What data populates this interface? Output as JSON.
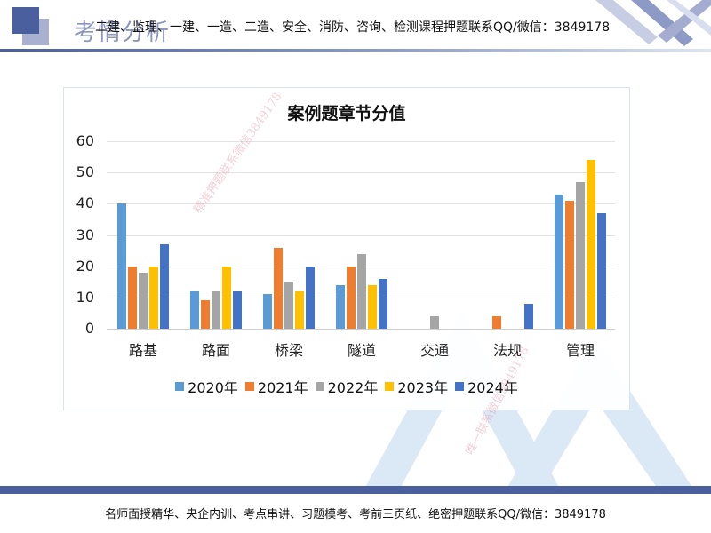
{
  "header": {
    "title": "考情分析",
    "banner": "二建、监理、一建、一造、二造、安全、消防、咨询、检测课程押题联系QQ/微信：3849178"
  },
  "watermarks": {
    "upper": "精准押题联系微信3849178",
    "lower": "唯一联系微信3849178"
  },
  "footer": {
    "text": "名师面授精华、央企内训、考点串讲、习题模考、考前三页纸、绝密押题联系QQ/微信：3849178"
  },
  "chart_data": {
    "type": "bar",
    "title": "案例题章节分值",
    "xlabel": "",
    "ylabel": "",
    "ylim": [
      0,
      60
    ],
    "yticks": [
      0,
      10,
      20,
      30,
      40,
      50,
      60
    ],
    "grid": true,
    "legend_position": "bottom",
    "categories": [
      "路基",
      "路面",
      "桥梁",
      "隧道",
      "交通",
      "法规",
      "管理"
    ],
    "series": [
      {
        "name": "2020年",
        "color": "#5b9bd5",
        "values": [
          40,
          12,
          11,
          14,
          0,
          0,
          43
        ]
      },
      {
        "name": "2021年",
        "color": "#ed7d31",
        "values": [
          20,
          9,
          26,
          20,
          0,
          4,
          41
        ]
      },
      {
        "name": "2022年",
        "color": "#a5a5a5",
        "values": [
          18,
          12,
          15,
          24,
          4,
          0,
          47
        ]
      },
      {
        "name": "2023年",
        "color": "#ffc000",
        "values": [
          20,
          20,
          12,
          14,
          0,
          0,
          54
        ]
      },
      {
        "name": "2024年",
        "color": "#4472c4",
        "values": [
          27,
          12,
          20,
          16,
          0,
          8,
          37
        ]
      }
    ]
  }
}
